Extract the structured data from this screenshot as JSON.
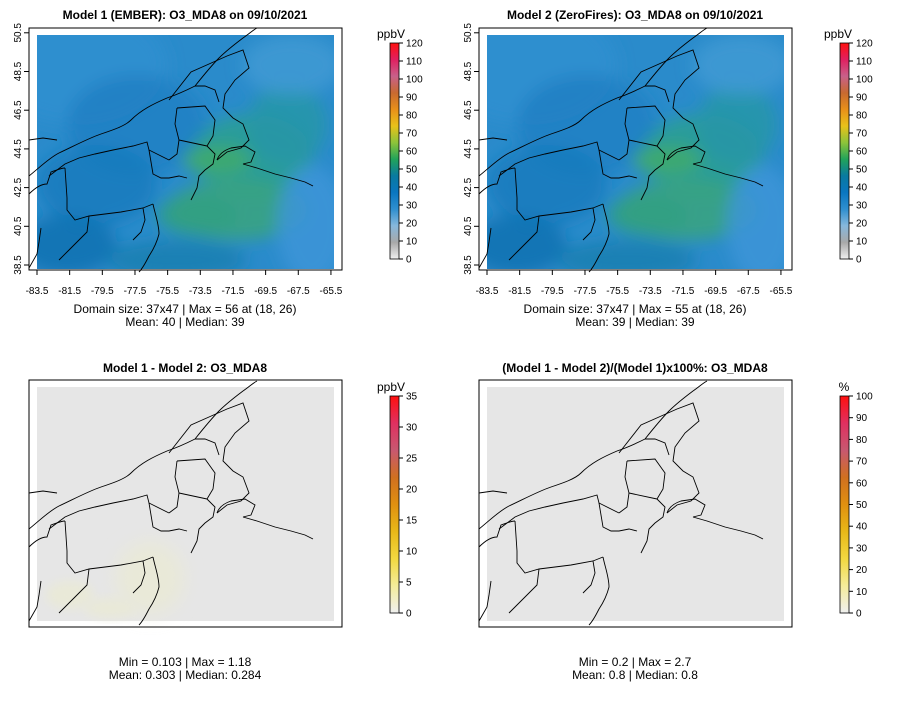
{
  "figure": {
    "panels": [
      {
        "id": "model1",
        "title": "Model 1 (EMBER): O3_MDA8 on 09/10/2021",
        "unit": "ppbV",
        "stats_line1": "Domain size: 37x47 | Max = 56 at (18, 26)",
        "stats_line2": "Mean: 40 |  Median: 39",
        "x_ticks": [
          "-83.5",
          "-81.5",
          "-79.5",
          "-77.5",
          "-75.5",
          "-73.5",
          "-71.5",
          "-69.5",
          "-67.5",
          "-65.5"
        ],
        "y_ticks": [
          "38.5",
          "40.5",
          "42.5",
          "44.5",
          "46.5",
          "48.5",
          "50.5"
        ],
        "colorbar_ticks": [
          "0",
          "10",
          "20",
          "30",
          "40",
          "50",
          "60",
          "70",
          "80",
          "90",
          "100",
          "110",
          "120"
        ],
        "colorbar_colors": [
          "#f0f0f0",
          "#a8a8a8",
          "#86b8dc",
          "#2f8fcf",
          "#0a76c0",
          "#0a7aa0",
          "#22a35a",
          "#8cc43a",
          "#e8c21a",
          "#e8901a",
          "#c86a30",
          "#c8608a",
          "#e02060",
          "#ff1010"
        ]
      },
      {
        "id": "model2",
        "title": "Model 2 (ZeroFires): O3_MDA8 on 09/10/2021",
        "unit": "ppbV",
        "stats_line1": "Domain size: 37x47 | Max = 55 at (18, 26)",
        "stats_line2": "Mean: 39 |  Median: 39",
        "x_ticks": [
          "-83.5",
          "-81.5",
          "-79.5",
          "-77.5",
          "-75.5",
          "-73.5",
          "-71.5",
          "-69.5",
          "-67.5",
          "-65.5"
        ],
        "y_ticks": [
          "38.5",
          "40.5",
          "42.5",
          "44.5",
          "46.5",
          "48.5",
          "50.5"
        ],
        "colorbar_ticks": [
          "0",
          "10",
          "20",
          "30",
          "40",
          "50",
          "60",
          "70",
          "80",
          "90",
          "100",
          "110",
          "120"
        ],
        "colorbar_colors": [
          "#f0f0f0",
          "#a8a8a8",
          "#86b8dc",
          "#2f8fcf",
          "#0a76c0",
          "#0a7aa0",
          "#22a35a",
          "#8cc43a",
          "#e8c21a",
          "#e8901a",
          "#c86a30",
          "#c8608a",
          "#e02060",
          "#ff1010"
        ]
      },
      {
        "id": "diff",
        "title": "Model 1 - Model 2: O3_MDA8",
        "unit": "ppbV",
        "stats_line1": "Min = 0.103 | Max = 1.18",
        "stats_line2": "Mean: 0.303 |  Median: 0.284",
        "colorbar_ticks": [
          "0",
          "5",
          "10",
          "15",
          "20",
          "25",
          "30",
          "35"
        ],
        "colorbar_colors": [
          "#f0f0f0",
          "#f4ec9a",
          "#f2d840",
          "#e8b818",
          "#e09010",
          "#d07020",
          "#c85870",
          "#e03060",
          "#ff1010"
        ]
      },
      {
        "id": "pct",
        "title": "(Model 1 - Model 2)/(Model 1)x100%: O3_MDA8",
        "unit": "%",
        "stats_line1": "Min = 0.2 | Max = 2.7",
        "stats_line2": "Mean: 0.8 |  Median: 0.8",
        "colorbar_ticks": [
          "0",
          "10",
          "20",
          "30",
          "40",
          "50",
          "60",
          "70",
          "80",
          "90",
          "100"
        ],
        "colorbar_colors": [
          "#f0f0f0",
          "#f4ec9a",
          "#f2d840",
          "#e8b818",
          "#e09010",
          "#d07020",
          "#c85870",
          "#e03060",
          "#ff1010"
        ]
      }
    ]
  },
  "chart_data": [
    {
      "type": "heatmap",
      "title": "Model 1 (EMBER): O3_MDA8 on 09/10/2021",
      "xlabel": "",
      "ylabel": "",
      "xlim": [
        -83.5,
        -65.5
      ],
      "ylim": [
        38.5,
        50.5
      ],
      "unit": "ppbV",
      "color_range": [
        0,
        120
      ],
      "grid_size": "37x47",
      "max": 56,
      "max_at": [
        18,
        26
      ],
      "mean": 40,
      "median": 39
    },
    {
      "type": "heatmap",
      "title": "Model 2 (ZeroFires): O3_MDA8 on 09/10/2021",
      "xlabel": "",
      "ylabel": "",
      "xlim": [
        -83.5,
        -65.5
      ],
      "ylim": [
        38.5,
        50.5
      ],
      "unit": "ppbV",
      "color_range": [
        0,
        120
      ],
      "grid_size": "37x47",
      "max": 55,
      "max_at": [
        18,
        26
      ],
      "mean": 39,
      "median": 39
    },
    {
      "type": "heatmap",
      "title": "Model 1 - Model 2: O3_MDA8",
      "unit": "ppbV",
      "color_range": [
        0,
        35
      ],
      "min": 0.103,
      "max": 1.18,
      "mean": 0.303,
      "median": 0.284
    },
    {
      "type": "heatmap",
      "title": "(Model 1 - Model 2)/(Model 1)x100%: O3_MDA8",
      "unit": "%",
      "color_range": [
        0,
        100
      ],
      "min": 0.2,
      "max": 2.7,
      "mean": 0.8,
      "median": 0.8
    }
  ]
}
